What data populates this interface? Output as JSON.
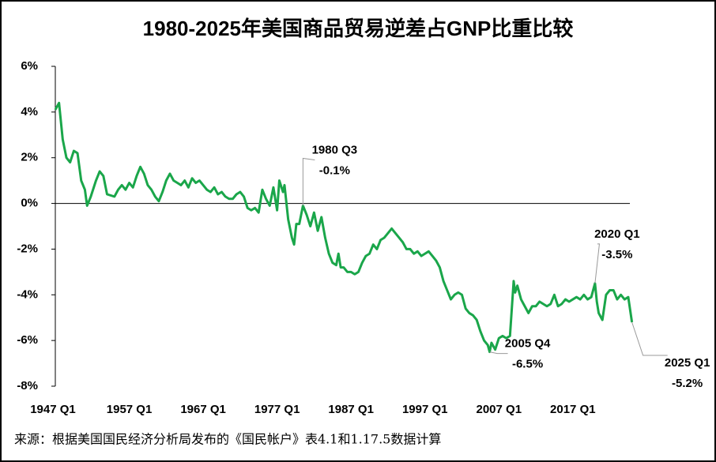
{
  "chart_data": {
    "type": "line",
    "title": "1980-2025年美国商品贸易逆差占GNP比重比较",
    "source": "来源：根据美国国民经济分析局发布的《国民帐户》表4.1和1.17.5数据计算",
    "xlim": [
      1947,
      2026
    ],
    "xticks": [
      {
        "value": 1947,
        "label": "1947 Q1"
      },
      {
        "value": 1957,
        "label": "1957 Q1"
      },
      {
        "value": 1967,
        "label": "1967 Q1"
      },
      {
        "value": 1977,
        "label": "1977 Q1"
      },
      {
        "value": 1987,
        "label": "1987 Q1"
      },
      {
        "value": 1997,
        "label": "1997 Q1"
      },
      {
        "value": 2007,
        "label": "2007 Q1"
      },
      {
        "value": 2017,
        "label": "2017 Q1"
      }
    ],
    "ylim": [
      -8,
      6
    ],
    "yticks": [
      {
        "value": 6,
        "label": "6%"
      },
      {
        "value": 4,
        "label": "4%"
      },
      {
        "value": 2,
        "label": "2%"
      },
      {
        "value": 0,
        "label": "0%"
      },
      {
        "value": -2,
        "label": "-2%"
      },
      {
        "value": -4,
        "label": "-4%"
      },
      {
        "value": -6,
        "label": "-6%"
      },
      {
        "value": -8,
        "label": "-8%"
      }
    ],
    "color": "#1aa64a",
    "x": [
      1947,
      1947.5,
      1948,
      1948.5,
      1949,
      1949.5,
      1950,
      1950.5,
      1951,
      1951.3,
      1951.8,
      1952.5,
      1953,
      1953.5,
      1954,
      1955,
      1955.5,
      1956,
      1956.5,
      1957,
      1957.5,
      1958,
      1958.5,
      1959,
      1959.5,
      1960,
      1960.5,
      1961,
      1961.5,
      1962,
      1962.5,
      1963,
      1963.5,
      1964,
      1964.5,
      1965,
      1965.5,
      1966,
      1966.5,
      1967,
      1967.5,
      1968,
      1968.5,
      1969,
      1969.5,
      1970,
      1970.5,
      1971,
      1971.5,
      1972,
      1972.5,
      1973,
      1973.5,
      1974,
      1974.5,
      1975,
      1975.5,
      1976,
      1976.5,
      1977,
      1977.3,
      1977.8,
      1978,
      1978.5,
      1979,
      1979.3,
      1979.6,
      1980,
      1980.5,
      1981,
      1981.5,
      1982,
      1982.5,
      1983,
      1983.5,
      1984,
      1984.5,
      1985,
      1985.3,
      1985.6,
      1986,
      1986.5,
      1987,
      1987.5,
      1988,
      1988.5,
      1989,
      1989.5,
      1990,
      1990.5,
      1991,
      1991.5,
      1992,
      1992.5,
      1993,
      1993.5,
      1994,
      1994.5,
      1995,
      1995.5,
      1996,
      1996.5,
      1997,
      1997.5,
      1998,
      1998.5,
      1999,
      1999.5,
      2000,
      2000.5,
      2001,
      2001.5,
      2002,
      2002.5,
      2003,
      2003.5,
      2004,
      2004.5,
      2005,
      2005.5,
      2005.75,
      2006,
      2006.5,
      2007,
      2007.5,
      2008,
      2008.5,
      2009,
      2009.2,
      2009.5,
      2010,
      2010.5,
      2011,
      2011.5,
      2012,
      2012.5,
      2013,
      2013.5,
      2014,
      2014.5,
      2015,
      2015.5,
      2016,
      2016.5,
      2017,
      2017.5,
      2018,
      2018.5,
      2019,
      2019.5,
      2020,
      2020.25,
      2020.5,
      2021,
      2021.5,
      2022,
      2022.5,
      2023,
      2023.5,
      2024,
      2024.5,
      2025
    ],
    "values": [
      4.1,
      4.4,
      2.8,
      2.0,
      1.8,
      2.3,
      2.2,
      1.0,
      0.6,
      -0.1,
      0.3,
      1.0,
      1.4,
      1.2,
      0.4,
      0.3,
      0.6,
      0.8,
      0.6,
      0.9,
      0.7,
      1.2,
      1.6,
      1.3,
      0.8,
      0.6,
      0.3,
      0.1,
      0.5,
      1.0,
      1.3,
      1.0,
      0.9,
      0.8,
      1.0,
      0.7,
      1.1,
      0.9,
      1.0,
      0.8,
      0.6,
      0.5,
      0.7,
      0.4,
      0.5,
      0.3,
      0.2,
      0.2,
      0.4,
      0.5,
      0.3,
      -0.2,
      -0.3,
      -0.2,
      -0.4,
      0.6,
      0.2,
      -0.1,
      0.7,
      -0.3,
      1.0,
      0.5,
      0.8,
      -0.7,
      -1.5,
      -1.8,
      -0.9,
      -0.9,
      -0.1,
      -0.5,
      -1.0,
      -0.4,
      -1.2,
      -0.6,
      -1.5,
      -2.2,
      -2.6,
      -2.7,
      -2.2,
      -2.8,
      -2.8,
      -3.0,
      -3.0,
      -3.1,
      -3.0,
      -2.6,
      -2.3,
      -2.2,
      -1.8,
      -2.0,
      -1.6,
      -1.5,
      -1.3,
      -1.1,
      -1.3,
      -1.5,
      -1.7,
      -2.0,
      -2.0,
      -2.2,
      -2.1,
      -2.3,
      -2.2,
      -2.1,
      -2.3,
      -2.5,
      -2.8,
      -3.4,
      -3.8,
      -4.2,
      -4.0,
      -3.9,
      -4.0,
      -4.6,
      -4.8,
      -4.9,
      -5.1,
      -5.6,
      -6.0,
      -6.2,
      -6.5,
      -6.1,
      -6.4,
      -5.9,
      -5.8,
      -5.9,
      -5.8,
      -3.4,
      -3.9,
      -3.6,
      -4.2,
      -4.5,
      -4.8,
      -4.5,
      -4.5,
      -4.3,
      -4.4,
      -4.5,
      -4.4,
      -4.0,
      -4.5,
      -4.4,
      -4.2,
      -4.3,
      -4.2,
      -4.1,
      -4.2,
      -4.0,
      -4.2,
      -4.1,
      -3.5,
      -4.3,
      -4.8,
      -5.1,
      -4.0,
      -3.8,
      -3.8,
      -4.2,
      -4.0,
      -4.2,
      -4.1,
      -5.2
    ],
    "annotations": [
      {
        "label": "1980 Q3",
        "x": 1980.5,
        "y": -0.1,
        "value_label": "-0.1%"
      },
      {
        "label": "2005 Q4",
        "x": 2005.75,
        "y": -6.5,
        "value_label": "-6.5%"
      },
      {
        "label": "2020 Q1",
        "x": 2020,
        "y": -3.5,
        "value_label": "-3.5%"
      },
      {
        "label": "2025 Q1",
        "x": 2025,
        "y": -5.2,
        "value_label": "-5.2%"
      }
    ]
  }
}
